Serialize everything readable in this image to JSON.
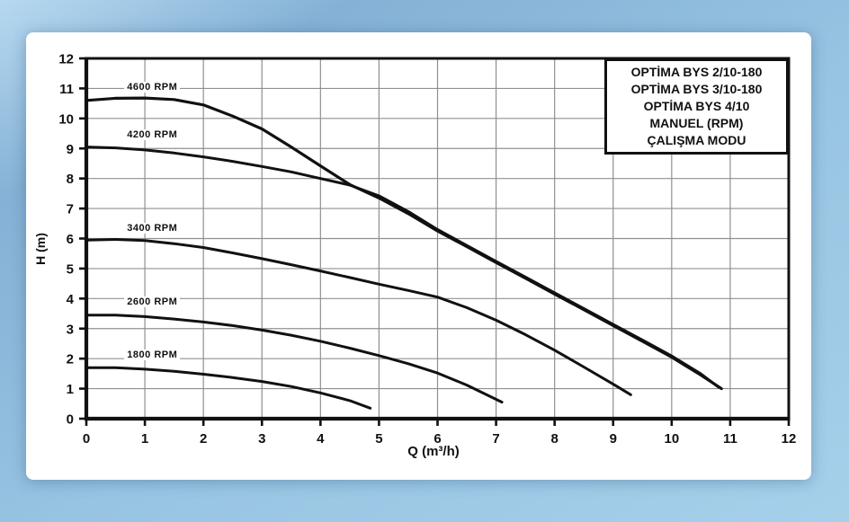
{
  "legend": {
    "lines": [
      "OPTİMA BYS 2/10-180",
      "OPTİMA BYS 3/10-180",
      "OPTİMA BYS 4/10",
      "MANUEL (RPM)",
      "ÇALIŞMA MODU"
    ]
  },
  "colors": {
    "curve": "#111111",
    "grid": "#909090",
    "card_bg": "#ffffff",
    "page_bg_top": "#b7d9f0",
    "page_bg_bottom": "#a6d0ea"
  },
  "chart_data": {
    "type": "line",
    "title": "",
    "xlabel": "Q (m³/h)",
    "ylabel": "H (m)",
    "xlim": [
      0,
      12
    ],
    "ylim": [
      0,
      12
    ],
    "x_ticks": [
      0,
      1,
      2,
      3,
      4,
      5,
      6,
      7,
      8,
      9,
      10,
      11,
      12
    ],
    "y_ticks": [
      0,
      1,
      2,
      3,
      4,
      5,
      6,
      7,
      8,
      9,
      10,
      11,
      12
    ],
    "grid": true,
    "legend_position": "top-right",
    "series": [
      {
        "name": "4600 RPM",
        "label_pos": [
          0.65,
          11.05
        ],
        "width": 3.2,
        "points": [
          [
            0,
            10.6
          ],
          [
            0.5,
            10.67
          ],
          [
            1,
            10.68
          ],
          [
            1.5,
            10.63
          ],
          [
            2,
            10.45
          ],
          [
            2.5,
            10.08
          ],
          [
            3,
            9.65
          ],
          [
            3.5,
            9.05
          ],
          [
            4,
            8.42
          ],
          [
            4.5,
            7.8
          ],
          [
            5,
            7.35
          ],
          [
            5.5,
            6.83
          ],
          [
            6,
            6.25
          ],
          [
            6.5,
            5.73
          ],
          [
            7,
            5.2
          ],
          [
            7.5,
            4.68
          ],
          [
            8,
            4.15
          ],
          [
            8.5,
            3.63
          ],
          [
            9,
            3.1
          ],
          [
            9.5,
            2.58
          ],
          [
            10,
            2.05
          ],
          [
            10.5,
            1.45
          ],
          [
            10.85,
            1.0
          ]
        ]
      },
      {
        "name": "4200 RPM",
        "label_pos": [
          0.65,
          9.45
        ],
        "width": 3,
        "points": [
          [
            0,
            9.05
          ],
          [
            0.5,
            9.02
          ],
          [
            1,
            8.95
          ],
          [
            1.5,
            8.85
          ],
          [
            2,
            8.72
          ],
          [
            2.5,
            8.57
          ],
          [
            3,
            8.4
          ],
          [
            3.5,
            8.22
          ],
          [
            4,
            8.0
          ],
          [
            4.5,
            7.78
          ],
          [
            5,
            7.42
          ],
          [
            5.5,
            6.9
          ],
          [
            6,
            6.3
          ],
          [
            6.5,
            5.77
          ],
          [
            7,
            5.24
          ],
          [
            7.5,
            4.72
          ],
          [
            8,
            4.19
          ],
          [
            8.5,
            3.67
          ],
          [
            9,
            3.14
          ],
          [
            9.5,
            2.62
          ],
          [
            10,
            2.09
          ],
          [
            10.5,
            1.49
          ],
          [
            10.8,
            1.05
          ]
        ]
      },
      {
        "name": "3400 RPM",
        "label_pos": [
          0.65,
          6.35
        ],
        "width": 3,
        "points": [
          [
            0,
            5.95
          ],
          [
            0.5,
            5.97
          ],
          [
            1,
            5.93
          ],
          [
            1.5,
            5.83
          ],
          [
            2,
            5.7
          ],
          [
            2.5,
            5.52
          ],
          [
            3,
            5.33
          ],
          [
            3.5,
            5.13
          ],
          [
            4,
            4.92
          ],
          [
            4.5,
            4.7
          ],
          [
            5,
            4.48
          ],
          [
            5.5,
            4.27
          ],
          [
            6,
            4.05
          ],
          [
            6.5,
            3.7
          ],
          [
            7,
            3.28
          ],
          [
            7.5,
            2.8
          ],
          [
            8,
            2.28
          ],
          [
            8.5,
            1.72
          ],
          [
            9,
            1.15
          ],
          [
            9.3,
            0.8
          ]
        ]
      },
      {
        "name": "2600 RPM",
        "label_pos": [
          0.65,
          3.9
        ],
        "width": 3,
        "points": [
          [
            0,
            3.45
          ],
          [
            0.5,
            3.45
          ],
          [
            1,
            3.4
          ],
          [
            1.5,
            3.32
          ],
          [
            2,
            3.22
          ],
          [
            2.5,
            3.1
          ],
          [
            3,
            2.95
          ],
          [
            3.5,
            2.78
          ],
          [
            4,
            2.58
          ],
          [
            4.5,
            2.35
          ],
          [
            5,
            2.1
          ],
          [
            5.5,
            1.83
          ],
          [
            6,
            1.52
          ],
          [
            6.5,
            1.12
          ],
          [
            7.1,
            0.55
          ]
        ]
      },
      {
        "name": "1800 RPM",
        "label_pos": [
          0.65,
          2.12
        ],
        "width": 3,
        "points": [
          [
            0,
            1.7
          ],
          [
            0.5,
            1.7
          ],
          [
            1,
            1.65
          ],
          [
            1.5,
            1.58
          ],
          [
            2,
            1.48
          ],
          [
            2.5,
            1.37
          ],
          [
            3,
            1.24
          ],
          [
            3.5,
            1.07
          ],
          [
            4,
            0.86
          ],
          [
            4.5,
            0.6
          ],
          [
            4.85,
            0.35
          ]
        ]
      }
    ]
  }
}
